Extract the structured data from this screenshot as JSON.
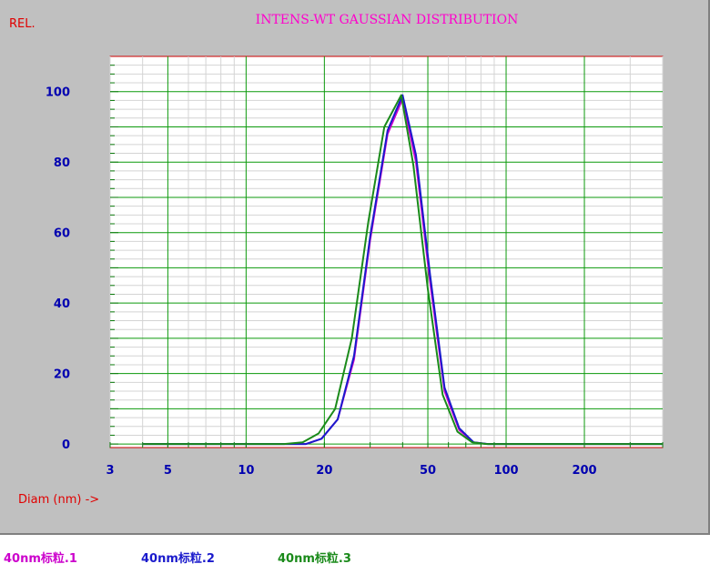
{
  "chart_data": {
    "type": "line",
    "title": "INTENS-WT GAUSSIAN DISTRIBUTION",
    "ylabel": "REL.",
    "xlabel": "Diam (nm) ->",
    "x_scale": "log",
    "xlim": [
      3,
      400
    ],
    "ylim": [
      -1,
      110
    ],
    "x_ticks": [
      3,
      5,
      10,
      20,
      50,
      100,
      200
    ],
    "x_tick_labels": [
      "3",
      "5",
      "10",
      "20",
      "50",
      "100",
      "200"
    ],
    "y_ticks": [
      0,
      20,
      40,
      60,
      80,
      100
    ],
    "y_tick_labels": [
      "0",
      "20",
      "40",
      "60",
      "80",
      "100"
    ],
    "grid": true,
    "legend_position": "bottom",
    "series": [
      {
        "name": "40nm标粒.1",
        "color": "#cc00cc",
        "x": [
          4,
          15,
          17,
          19.5,
          22.5,
          26,
          30,
          35,
          40,
          45,
          51,
          58,
          66,
          75,
          85,
          96,
          110,
          400
        ],
        "y": [
          0,
          0,
          0,
          1.5,
          7,
          24,
          58,
          88,
          98,
          80,
          46,
          15,
          4,
          0.5,
          0,
          0,
          0,
          0
        ]
      },
      {
        "name": "40nm标粒.2",
        "color": "#1a1acc",
        "x": [
          4,
          15,
          17,
          19.5,
          22.5,
          26,
          30,
          35,
          40,
          45,
          51,
          58,
          66,
          75,
          85,
          96,
          110,
          400
        ],
        "y": [
          0,
          0,
          0,
          1.5,
          7,
          25,
          59,
          89,
          99,
          82,
          48,
          16,
          4.5,
          0.5,
          0,
          0,
          0,
          0
        ]
      },
      {
        "name": "40nm标粒.3",
        "color": "#1a8a1a",
        "x": [
          4,
          14,
          16.5,
          19,
          22,
          25.5,
          29.5,
          34,
          39.5,
          44,
          50,
          57,
          65,
          74,
          84,
          95,
          110,
          400
        ],
        "y": [
          0,
          0,
          0.5,
          3,
          10,
          30,
          63,
          90,
          99,
          79,
          44,
          14,
          3.5,
          0.5,
          0,
          0,
          0,
          0
        ]
      }
    ]
  }
}
